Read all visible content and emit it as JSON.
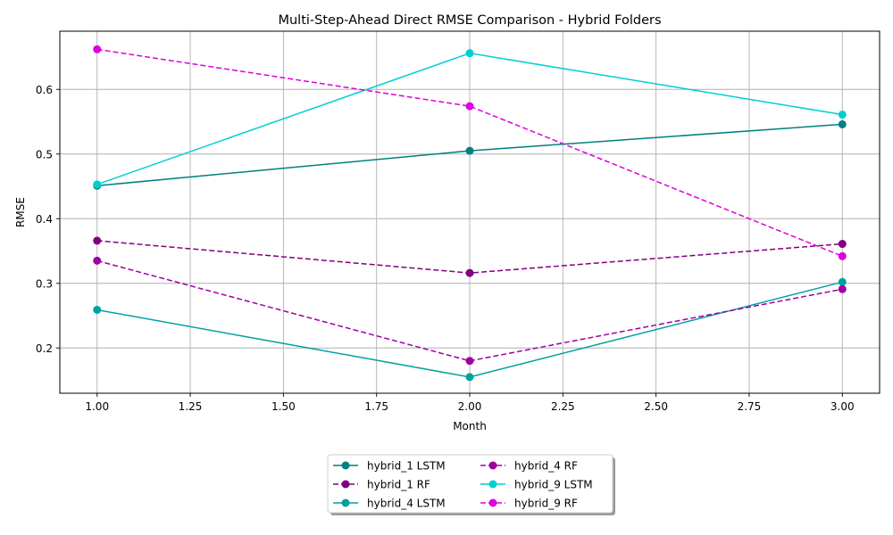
{
  "chart_data": {
    "type": "line",
    "title": "Multi-Step-Ahead Direct RMSE Comparison - Hybrid Folders",
    "xlabel": "Month",
    "ylabel": "RMSE",
    "x": [
      1,
      2,
      3
    ],
    "xlim": [
      0.9,
      3.1
    ],
    "ylim": [
      0.13,
      0.69
    ],
    "xticks": [
      "1.00",
      "1.25",
      "1.50",
      "1.75",
      "2.00",
      "2.25",
      "2.50",
      "2.75",
      "3.00"
    ],
    "yticks": [
      "0.2",
      "0.3",
      "0.4",
      "0.5",
      "0.6"
    ],
    "grid": true,
    "legend_position": "below-center",
    "series": [
      {
        "name": "hybrid_1 LSTM",
        "values": [
          0.451,
          0.505,
          0.546
        ],
        "color": "#008080",
        "dashed": false
      },
      {
        "name": "hybrid_1 RF",
        "values": [
          0.366,
          0.316,
          0.361
        ],
        "color": "#800080",
        "dashed": true
      },
      {
        "name": "hybrid_4 LSTM",
        "values": [
          0.259,
          0.155,
          0.302
        ],
        "color": "#00a0a0",
        "dashed": false
      },
      {
        "name": "hybrid_4 RF",
        "values": [
          0.335,
          0.18,
          0.291
        ],
        "color": "#a000a0",
        "dashed": true
      },
      {
        "name": "hybrid_9 LSTM",
        "values": [
          0.453,
          0.656,
          0.561
        ],
        "color": "#00cfcf",
        "dashed": false
      },
      {
        "name": "hybrid_9 RF",
        "values": [
          0.662,
          0.574,
          0.342
        ],
        "color": "#dd00dd",
        "dashed": true
      }
    ]
  }
}
